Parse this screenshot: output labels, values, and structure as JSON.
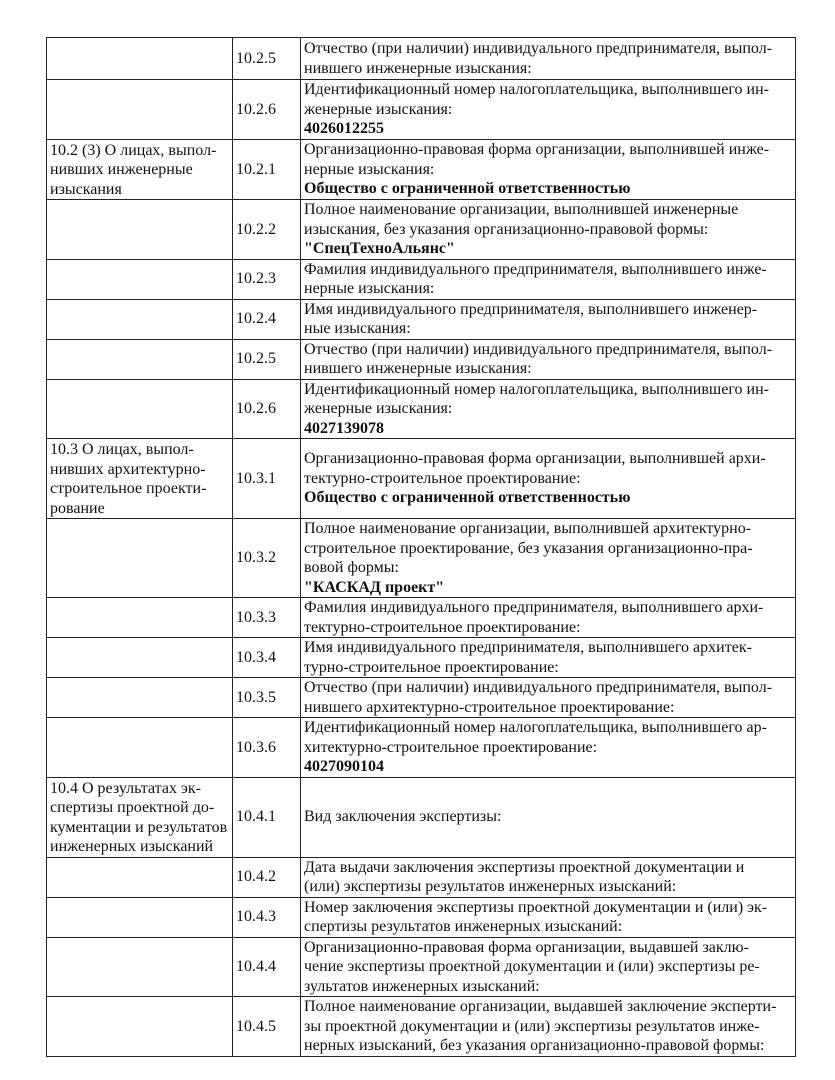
{
  "rows": [
    {
      "section": "",
      "num": "10.2.5",
      "text": "Отчество (при наличии) индивидуального предпринимателя, выпол-\nнившего инженерные изыскания:",
      "value": ""
    },
    {
      "section": "",
      "num": "10.2.6",
      "text": "Идентификационный номер налогоплательщика, выполнившего ин-\nженерные изыскания:",
      "value": "4026012255"
    },
    {
      "section": "10.2 (3) О лицах, выпол-\nнивших инженерные\nизыскания",
      "num": "10.2.1",
      "text": "Организационно-правовая форма организации, выполнившей инже-\nнерные изыскания:",
      "value": "Общество с ограниченной ответственностью"
    },
    {
      "section": "",
      "num": "10.2.2",
      "text": "Полное наименование организации, выполнившей инженерные\nизыскания, без указания организационно-правовой формы:",
      "value": "\"СпецТехноАльянс\""
    },
    {
      "section": "",
      "num": "10.2.3",
      "text": "Фамилия индивидуального предпринимателя, выполнившего инже-\nнерные изыскания:",
      "value": ""
    },
    {
      "section": "",
      "num": "10.2.4",
      "text": "Имя индивидуального предпринимателя, выполнившего инженер-\nные изыскания:",
      "value": ""
    },
    {
      "section": "",
      "num": "10.2.5",
      "text": "Отчество (при наличии) индивидуального предпринимателя, выпол-\nнившего инженерные изыскания:",
      "value": ""
    },
    {
      "section": "",
      "num": "10.2.6",
      "text": "Идентификационный номер налогоплательщика, выполнившего ин-\nженерные изыскания:",
      "value": "4027139078"
    },
    {
      "section": "10.3 О лицах, выпол-\nнивших архитектурно-\nстроительное проекти-\nрование",
      "num": "10.3.1",
      "text": "Организационно-правовая форма организации, выполнившей архи-\nтектурно-строительное проектирование:",
      "value": "Общество с ограниченной ответственностью"
    },
    {
      "section": "",
      "num": "10.3.2",
      "text": "Полное наименование организации, выполнившей архитектурно-\nстроительное проектирование, без указания организационно-пра-\nвовой формы:",
      "value": "\"КАСКАД проект\""
    },
    {
      "section": "",
      "num": "10.3.3",
      "text": "Фамилия индивидуального предпринимателя, выполнившего архи-\nтектурно-строительное проектирование:",
      "value": ""
    },
    {
      "section": "",
      "num": "10.3.4",
      "text": "Имя индивидуального предпринимателя, выполнившего архитек-\nтурно-строительное проектирование:",
      "value": ""
    },
    {
      "section": "",
      "num": "10.3.5",
      "text": "Отчество (при наличии) индивидуального предпринимателя, выпол-\nнившего архитектурно-строительное проектирование:",
      "value": ""
    },
    {
      "section": "",
      "num": "10.3.6",
      "text": "Идентификационный номер налогоплательщика, выполнившего ар-\nхитектурно-строительное проектирование:",
      "value": "4027090104"
    },
    {
      "section": "10.4 О результатах эк-\nспертизы проектной до-\nкументации и результатов\nинженерных изысканий",
      "num": "10.4.1",
      "text": "Вид заключения экспертизы:",
      "value": ""
    },
    {
      "section": "",
      "num": "10.4.2",
      "text": "Дата выдачи заключения экспертизы проектной документации и\n(или) экспертизы результатов инженерных изысканий:",
      "value": ""
    },
    {
      "section": "",
      "num": "10.4.3",
      "text": "Номер заключения экспертизы проектной документации и (или) эк-\nспертизы результатов инженерных изысканий:",
      "value": ""
    },
    {
      "section": "",
      "num": "10.4.4",
      "text": "Организационно-правовая форма организации, выдавшей заклю-\nчение экспертизы проектной документации и (или) экспертизы ре-\nзультатов инженерных изысканий:",
      "value": ""
    },
    {
      "section": "",
      "num": "10.4.5",
      "text": "Полное наименование организации, выдавшей заключение эксперти-\nзы проектной документации и (или) экспертизы результатов инже-\nнерных изысканий, без указания организационно-правовой формы:",
      "value": ""
    }
  ]
}
